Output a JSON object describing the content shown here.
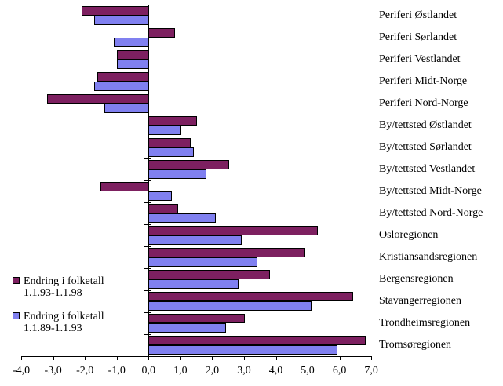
{
  "chart_data": {
    "type": "bar",
    "orientation": "horizontal",
    "title": "",
    "xlabel": "",
    "ylabel": "",
    "xlim": [
      -4.0,
      7.0
    ],
    "grid": false,
    "legend_position": "left-middle",
    "x_tick_labels": [
      "-4,0",
      "-3,0",
      "-2,0",
      "-1,0",
      "0,0",
      "1,0",
      "2,0",
      "3,0",
      "4,0",
      "5,0",
      "6,0",
      "7,0"
    ],
    "x_tick_values": [
      -4,
      -3,
      -2,
      -1,
      0,
      1,
      2,
      3,
      4,
      5,
      6,
      7
    ],
    "categories": [
      "Periferi Østlandet",
      "Periferi Sørlandet",
      "Periferi Vestlandet",
      "Periferi Midt-Norge",
      "Periferi Nord-Norge",
      "By/tettsted Østlandet",
      "By/tettsted Sørlandet",
      "By/tettsted Vestlandet",
      "By/tettsted Midt-Norge",
      "By/tettsted Nord-Norge",
      "Osloregionen",
      "Kristiansandsregionen",
      "Bergensregionen",
      "Stavangerregionen",
      "Trondheimsregionen",
      "Tromsøregionen"
    ],
    "series": [
      {
        "name": "Endring i folketall 1.1.93-1.1.98",
        "name_line1": "Endring i folketall",
        "name_line2": "1.1.93-1.1.98",
        "color": "#7D2060",
        "values": [
          -2.1,
          0.8,
          -1.0,
          -1.6,
          -3.2,
          1.5,
          1.3,
          2.5,
          -1.5,
          0.9,
          5.3,
          4.9,
          3.8,
          6.4,
          3.0,
          6.8
        ]
      },
      {
        "name": "Endring i folketall 1.1.89-1.1.93",
        "name_line1": "Endring i folketall",
        "name_line2": "1.1.89-1.1.93",
        "color": "#8080F0",
        "values": [
          -1.7,
          -1.1,
          -1.0,
          -1.7,
          -1.4,
          1.0,
          1.4,
          1.8,
          0.7,
          2.1,
          2.9,
          3.4,
          2.8,
          5.1,
          2.4,
          5.9
        ]
      }
    ]
  }
}
